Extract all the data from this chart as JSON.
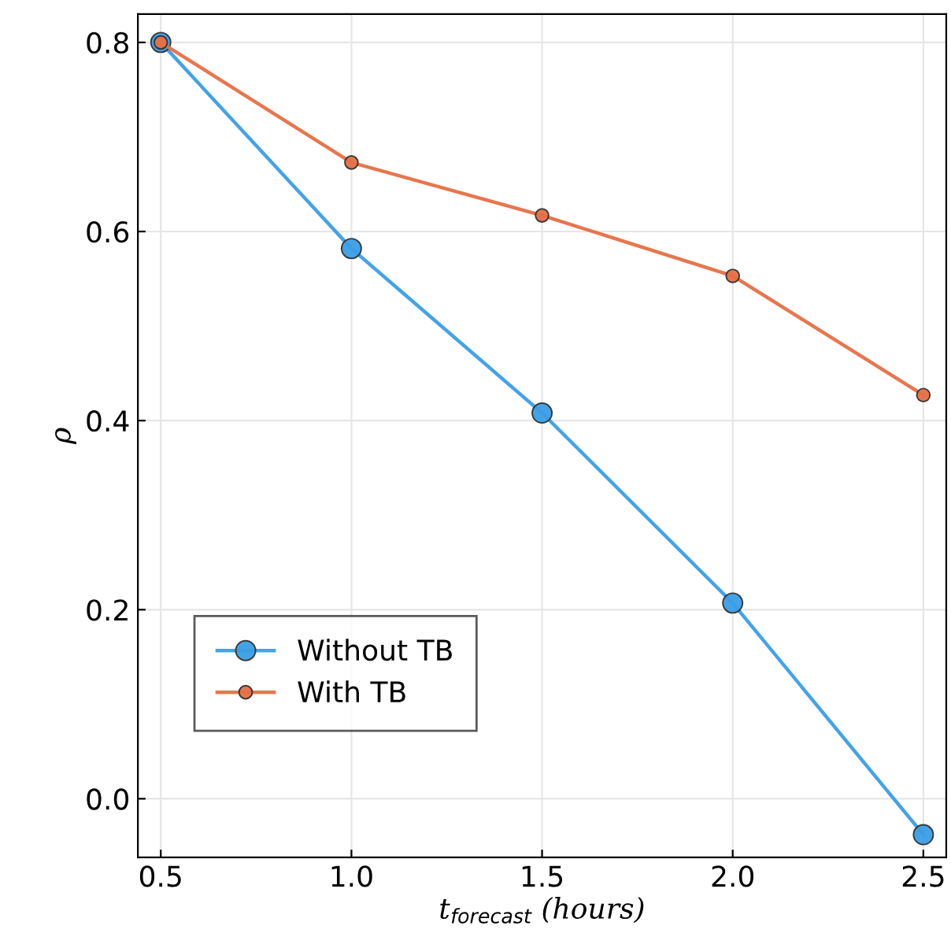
{
  "chart_data": {
    "type": "line",
    "xlabel": "t$_{forecast}$ (hours)",
    "ylabel": "ρ",
    "x": [
      0.5,
      1.0,
      1.5,
      2.0,
      2.5
    ],
    "series": [
      {
        "name": "Without TB",
        "color": "#3a9ee6",
        "values": [
          0.8,
          0.582,
          0.408,
          0.207,
          -0.038
        ]
      },
      {
        "name": "With TB",
        "color": "#e66f45",
        "values": [
          0.8,
          0.673,
          0.617,
          0.553,
          0.427
        ]
      }
    ],
    "xlim": [
      0.44,
      2.56
    ],
    "ylim": [
      -0.062,
      0.83
    ],
    "xticks": [
      {
        "value": 0.5,
        "label": "0.5"
      },
      {
        "value": 1.0,
        "label": "1.0"
      },
      {
        "value": 1.5,
        "label": "1.5"
      },
      {
        "value": 2.0,
        "label": "2.0"
      },
      {
        "value": 2.5,
        "label": "2.5"
      }
    ],
    "yticks": [
      {
        "value": 0.0,
        "label": "0.0"
      },
      {
        "value": 0.2,
        "label": "0.2"
      },
      {
        "value": 0.4,
        "label": "0.4"
      },
      {
        "value": 0.6,
        "label": "0.6"
      },
      {
        "value": 0.8,
        "label": "0.8"
      }
    ],
    "grid": true,
    "legend": "bottom left",
    "marker": "circle",
    "line_style": "solid"
  }
}
